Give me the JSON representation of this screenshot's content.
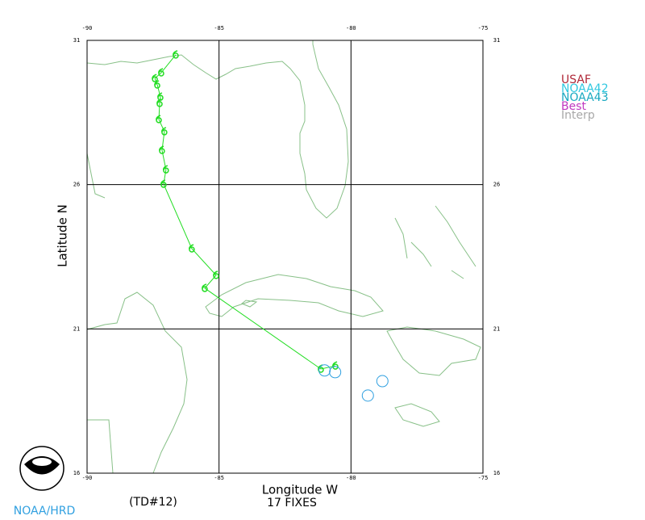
{
  "map": {
    "title": "(TD#12)",
    "subtitle": "17 FIXES",
    "x_label": "Longitude W",
    "y_label": "Latitude N",
    "xlim": [
      -90,
      -75
    ],
    "ylim": [
      16,
      31
    ],
    "xticks": [
      -90,
      -85,
      -80,
      -75
    ],
    "yticks": [
      16,
      21,
      26,
      31
    ],
    "grid": true,
    "legend": [
      {
        "name": "USAF",
        "color": "#b02838"
      },
      {
        "name": "NOAA42",
        "color": "#30c8e0"
      },
      {
        "name": "NOAA43",
        "color": "#18a8c0"
      },
      {
        "name": "Best",
        "color": "#c038c0"
      },
      {
        "name": "Interp",
        "color": "#a8a8a8"
      }
    ],
    "track": {
      "color": "#22dd22",
      "lon": [
        -80.59,
        -81.14,
        -85.54,
        -85.11,
        -86.03,
        -87.1,
        -87.01,
        -87.16,
        -87.07,
        -87.28,
        -87.25,
        -87.22,
        -87.34,
        -87.43,
        -87.19,
        -86.64
      ],
      "lat": [
        19.72,
        19.61,
        22.41,
        22.86,
        23.78,
        26.02,
        26.52,
        27.19,
        27.84,
        28.26,
        28.82,
        29.04,
        29.46,
        29.68,
        29.88,
        30.5
      ]
    },
    "recon": {
      "color": "#30a0e0",
      "lon": [
        -81.0,
        -80.6,
        -79.36,
        -78.81
      ],
      "lat": [
        19.56,
        19.5,
        18.69,
        19.19
      ]
    },
    "credit": "NOAA/HRD"
  }
}
